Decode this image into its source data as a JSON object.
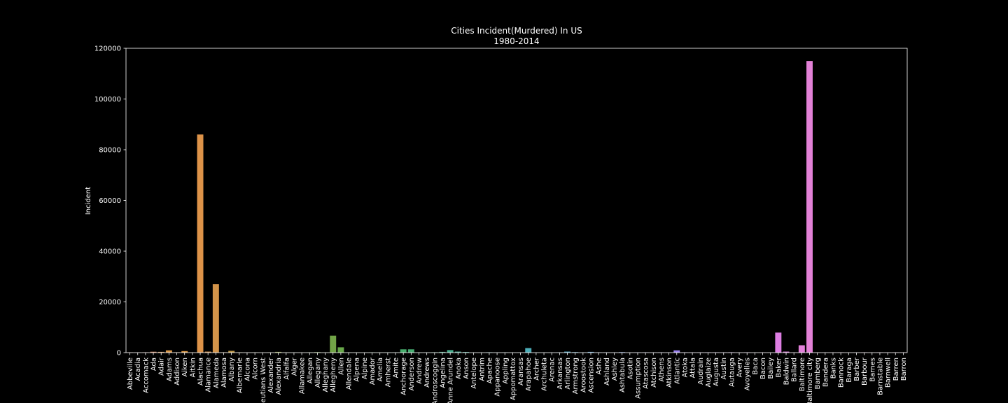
{
  "chart_data": {
    "type": "bar",
    "title": "Cities Incident(Murdered) In US",
    "subtitle": "1980-2014",
    "xlabel": "",
    "ylabel": "Incident",
    "ylim": [
      0,
      120000
    ],
    "yticks": [
      0,
      20000,
      40000,
      60000,
      80000,
      100000,
      120000
    ],
    "grid": false,
    "background": "#000000",
    "categories": [
      "Abbeville",
      "Acadia",
      "Accomack",
      "Ada",
      "Adair",
      "Adams",
      "Addison",
      "Aiken",
      "Aitkin",
      "Alachua",
      "Alamance",
      "Alameda",
      "Alamosa",
      "Albany",
      "Albemarle",
      "Alcona",
      "Alcorn",
      "Aleutians West",
      "Alexander",
      "Alexandria",
      "Alfalfa",
      "Alger",
      "Allamakee",
      "Allegan",
      "Allegany",
      "Alleghany",
      "Allegheny",
      "Allen",
      "Allendale",
      "Alpena",
      "Alpine",
      "Amador",
      "Amelia",
      "Amherst",
      "Amite",
      "Anchorage",
      "Anderson",
      "Andrew",
      "Andrews",
      "Androscoggin",
      "Angelina",
      "Anne Arundel",
      "Anoka",
      "Anson",
      "Antelope",
      "Antrim",
      "Apache",
      "Appanoose",
      "Appling",
      "Appomattox",
      "Aransas",
      "Arapahoe",
      "Archer",
      "Archuleta",
      "Arenac",
      "Arkansas",
      "Arlington",
      "Armstrong",
      "Aroostook",
      "Ascension",
      "Ashe",
      "Ashland",
      "Ashley",
      "Ashtabula",
      "Asotin",
      "Assumption",
      "Atascosa",
      "Atchison",
      "Athens",
      "Atkinson",
      "Atlantic",
      "Atoka",
      "Attala",
      "Audrain",
      "Auglaize",
      "Augusta",
      "Austin",
      "Autauga",
      "Avery",
      "Avoyelles",
      "Baca",
      "Bacon",
      "Bailey",
      "Baker",
      "Baldwin",
      "Ballard",
      "Baltimore",
      "Baltimore city",
      "Bamberg",
      "Bandera",
      "Banks",
      "Bannock",
      "Baraga",
      "Barber",
      "Barbour",
      "Barnes",
      "Barnstable",
      "Barnwell",
      "Barren",
      "Barron"
    ],
    "values": [
      100,
      60,
      120,
      350,
      300,
      900,
      150,
      600,
      100,
      86000,
      400,
      27000,
      150,
      700,
      120,
      30,
      80,
      20,
      100,
      300,
      50,
      30,
      40,
      100,
      200,
      60,
      6700,
      2100,
      80,
      60,
      10,
      100,
      40,
      100,
      80,
      1300,
      1300,
      60,
      60,
      150,
      300,
      1000,
      400,
      250,
      20,
      40,
      150,
      40,
      80,
      40,
      60,
      1800,
      50,
      30,
      40,
      100,
      400,
      200,
      100,
      300,
      100,
      100,
      60,
      200,
      20,
      80,
      100,
      60,
      100,
      60,
      900,
      100,
      80,
      80,
      100,
      100,
      80,
      150,
      40,
      100,
      20,
      60,
      40,
      7900,
      400,
      60,
      2900,
      115000,
      60,
      40,
      60,
      100,
      20,
      40,
      100,
      40,
      100,
      60,
      100,
      100
    ],
    "colors": [
      "#e28f90",
      "#e28f8a",
      "#e39078",
      "#e29069",
      "#e09a55",
      "#de9a4a",
      "#e09b45",
      "#dd9845",
      "#db9744",
      "#dd9349",
      "#d9944b",
      "#d3944a",
      "#c9964c",
      "#c09b48",
      "#b69b46",
      "#ad9b45",
      "#a19b46",
      "#9a9d45",
      "#959e45",
      "#8e9f45",
      "#889f45",
      "#83a045",
      "#7da146",
      "#77a247",
      "#72a248",
      "#6da449",
      "#72a447",
      "#68a84a",
      "#5ea94b",
      "#57aa4d",
      "#52ab50",
      "#4bab55",
      "#49ac5c",
      "#48ad62",
      "#48ae67",
      "#48ae6d",
      "#48ae73",
      "#47ae7a",
      "#47ae80",
      "#46af85",
      "#46af8a",
      "#46af8f",
      "#46af95",
      "#46af9a",
      "#47af9f",
      "#48afa4",
      "#49aea8",
      "#49aeab",
      "#4aaeaf",
      "#4aaeb2",
      "#4badb5",
      "#4badb8",
      "#4cadbb",
      "#4dacbe",
      "#4fabc1",
      "#51aac4",
      "#53a9c8",
      "#56a8cc",
      "#59a6d0",
      "#5da4d4",
      "#61a1d8",
      "#669edc",
      "#6b9ae0",
      "#7197e3",
      "#7793e6",
      "#7d90e9",
      "#838deb",
      "#898aec",
      "#8f87ee",
      "#9585ef",
      "#9b82f0",
      "#a180f0",
      "#a77ff0",
      "#ad7ef0",
      "#b37df0",
      "#b87cef",
      "#be7cee",
      "#c37ced",
      "#c87cec",
      "#cd7cea",
      "#d27ce8",
      "#d67de6",
      "#da7de4",
      "#dd7ee2",
      "#df7edf",
      "#e17fdd",
      "#e280da",
      "#e381d7",
      "#e482d4",
      "#e584d1",
      "#e585ce",
      "#e587cb",
      "#e589c8",
      "#e58bc5",
      "#e58dc2",
      "#e58fbf",
      "#e590bc",
      "#e591b9",
      "#e592b6",
      "#e594b3"
    ]
  }
}
